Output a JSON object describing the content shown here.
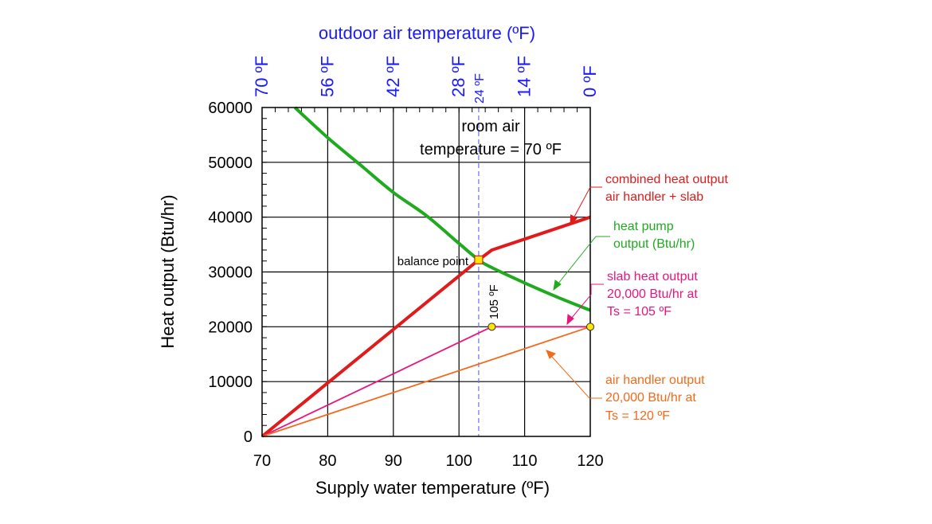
{
  "chart_data": {
    "type": "line",
    "xlabel": "Supply water temperature (ºF)",
    "ylabel": "Heat output (Btu/hr)",
    "top_axis_label": "outdoor air temperature (ºF)",
    "xlim": [
      70,
      120
    ],
    "ylim": [
      0,
      60000
    ],
    "x_ticks": [
      "70",
      "80",
      "90",
      "100",
      "110",
      "120"
    ],
    "y_ticks": [
      "0",
      "10000",
      "20000",
      "30000",
      "40000",
      "50000",
      "60000"
    ],
    "top_ticks": [
      {
        "x": 70,
        "label": "70 ºF"
      },
      {
        "x": 80,
        "label": "56 ºF"
      },
      {
        "x": 90,
        "label": "42 ºF"
      },
      {
        "x": 100,
        "label": "28 ºF"
      },
      {
        "x": 110,
        "label": "14 ºF"
      },
      {
        "x": 120,
        "label": "0 ºF"
      }
    ],
    "top_marker": {
      "x": 103,
      "label": "24 ºF"
    },
    "grid": true,
    "colors": {
      "heat_pump": "#1faa1f",
      "combined": "#e01b1b",
      "slab": "#e8157c",
      "air_handler": "#f26a1b",
      "top_axis": "#1a1aff",
      "balance_marker": "#ffe600",
      "dashed_line": "#6b6bff"
    },
    "series": [
      {
        "key": "heat_pump",
        "x": [
          75,
          80,
          85,
          90,
          95,
          100,
          103,
          105,
          110,
          115,
          120
        ],
        "y": [
          60000,
          54500,
          49500,
          44500,
          40300,
          35200,
          32200,
          30800,
          28000,
          25400,
          23000
        ]
      },
      {
        "key": "combined",
        "x": [
          70,
          103,
          105,
          120
        ],
        "y": [
          0,
          32200,
          34000,
          40000
        ]
      },
      {
        "key": "slab",
        "x": [
          70,
          105,
          120
        ],
        "y": [
          0,
          20000,
          20000
        ]
      },
      {
        "key": "air_handler",
        "x": [
          70,
          120
        ],
        "y": [
          0,
          20000
        ]
      }
    ],
    "points": [
      {
        "x": 105,
        "y": 20000,
        "key": "slab_point"
      },
      {
        "x": 120,
        "y": 20000,
        "key": "air_handler_point"
      }
    ],
    "balance_point": {
      "x": 103,
      "y": 32200,
      "label": "balance point"
    },
    "annotations": {
      "room_air_line1": "room air",
      "room_air_line2": "temperature = 70 ºF",
      "slab_temp": "105 ºF",
      "combined_line1": "combined heat output",
      "combined_line2": "air handler + slab",
      "heat_pump_line1": "heat pump",
      "heat_pump_line2": "output (Btu/hr)",
      "slab_line1": "slab heat output",
      "slab_line2": "20,000 Btu/hr at",
      "slab_line3": "Ts = 105 ºF",
      "air_line1": "air handler output",
      "air_line2": "20,000 Btu/hr at",
      "air_line3": "Ts = 120 ºF"
    }
  }
}
